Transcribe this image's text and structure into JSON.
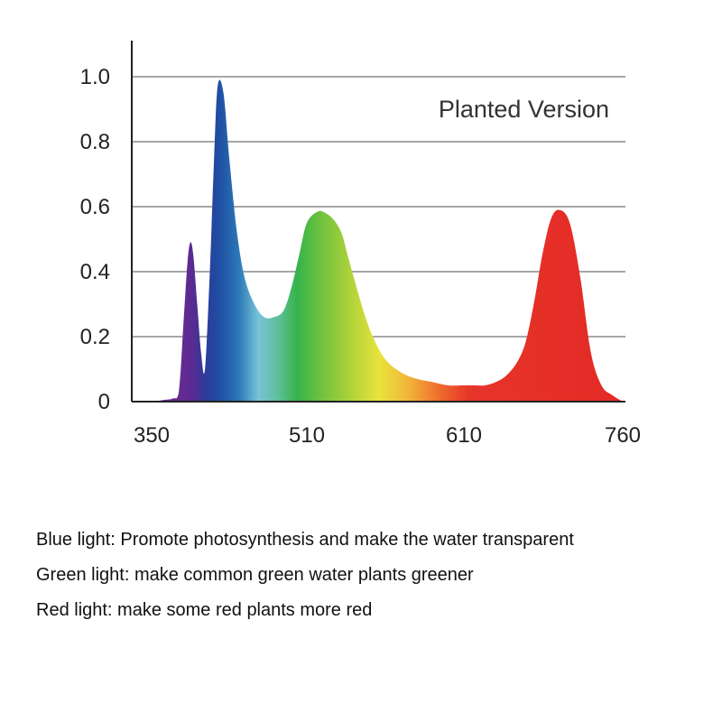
{
  "chart_data": {
    "type": "area",
    "title": "Planted Version",
    "xlabel": "",
    "ylabel": "",
    "x_ticks": [
      "350",
      "510",
      "610",
      "760"
    ],
    "y_ticks": [
      "0",
      "0.2",
      "0.4",
      "0.6",
      "0.8",
      "1.0"
    ],
    "ylim": [
      0,
      1.0
    ],
    "grid": true,
    "series": [
      {
        "x": [
          350,
          362,
          372,
          378,
          383,
          387,
          390,
          393,
          397,
          401,
          405,
          410,
          414,
          418,
          424,
          430,
          438,
          446,
          456,
          466,
          476,
          486,
          494,
          502,
          510,
          517,
          522,
          527,
          532,
          536,
          540,
          546,
          552,
          560,
          570,
          580,
          590,
          600,
          610,
          620,
          630,
          640,
          650,
          660,
          668,
          676,
          684,
          692,
          700,
          710,
          720,
          730,
          740,
          750,
          760
        ],
        "values": [
          0.0,
          0.005,
          0.01,
          0.03,
          0.25,
          0.43,
          0.49,
          0.45,
          0.3,
          0.15,
          0.1,
          0.4,
          0.72,
          0.97,
          0.95,
          0.75,
          0.52,
          0.38,
          0.3,
          0.26,
          0.26,
          0.28,
          0.35,
          0.45,
          0.55,
          0.585,
          0.58,
          0.56,
          0.52,
          0.45,
          0.38,
          0.28,
          0.2,
          0.13,
          0.09,
          0.07,
          0.06,
          0.05,
          0.05,
          0.05,
          0.05,
          0.06,
          0.08,
          0.12,
          0.18,
          0.3,
          0.45,
          0.56,
          0.59,
          0.55,
          0.38,
          0.15,
          0.05,
          0.02,
          0.0
        ]
      }
    ],
    "gradient_stops": [
      {
        "x": 350,
        "color": "#6a2d8f"
      },
      {
        "x": 372,
        "color": "#6b2c90"
      },
      {
        "x": 392,
        "color": "#5a2a92"
      },
      {
        "x": 405,
        "color": "#2d3b9a"
      },
      {
        "x": 420,
        "color": "#1e4fa3"
      },
      {
        "x": 440,
        "color": "#2c78b8"
      },
      {
        "x": 460,
        "color": "#78c3d8"
      },
      {
        "x": 480,
        "color": "#5fbf9a"
      },
      {
        "x": 500,
        "color": "#36b34a"
      },
      {
        "x": 520,
        "color": "#72c23e"
      },
      {
        "x": 540,
        "color": "#b5d43a"
      },
      {
        "x": 556,
        "color": "#e8e43c"
      },
      {
        "x": 575,
        "color": "#f2b43a"
      },
      {
        "x": 595,
        "color": "#ee6a2c"
      },
      {
        "x": 615,
        "color": "#e6352a"
      },
      {
        "x": 760,
        "color": "#e42a26"
      }
    ]
  },
  "notes": [
    "Blue light: Promote photosynthesis and make the water transparent",
    "Green light: make common green water plants greener",
    "Red light: make some red plants more red"
  ]
}
